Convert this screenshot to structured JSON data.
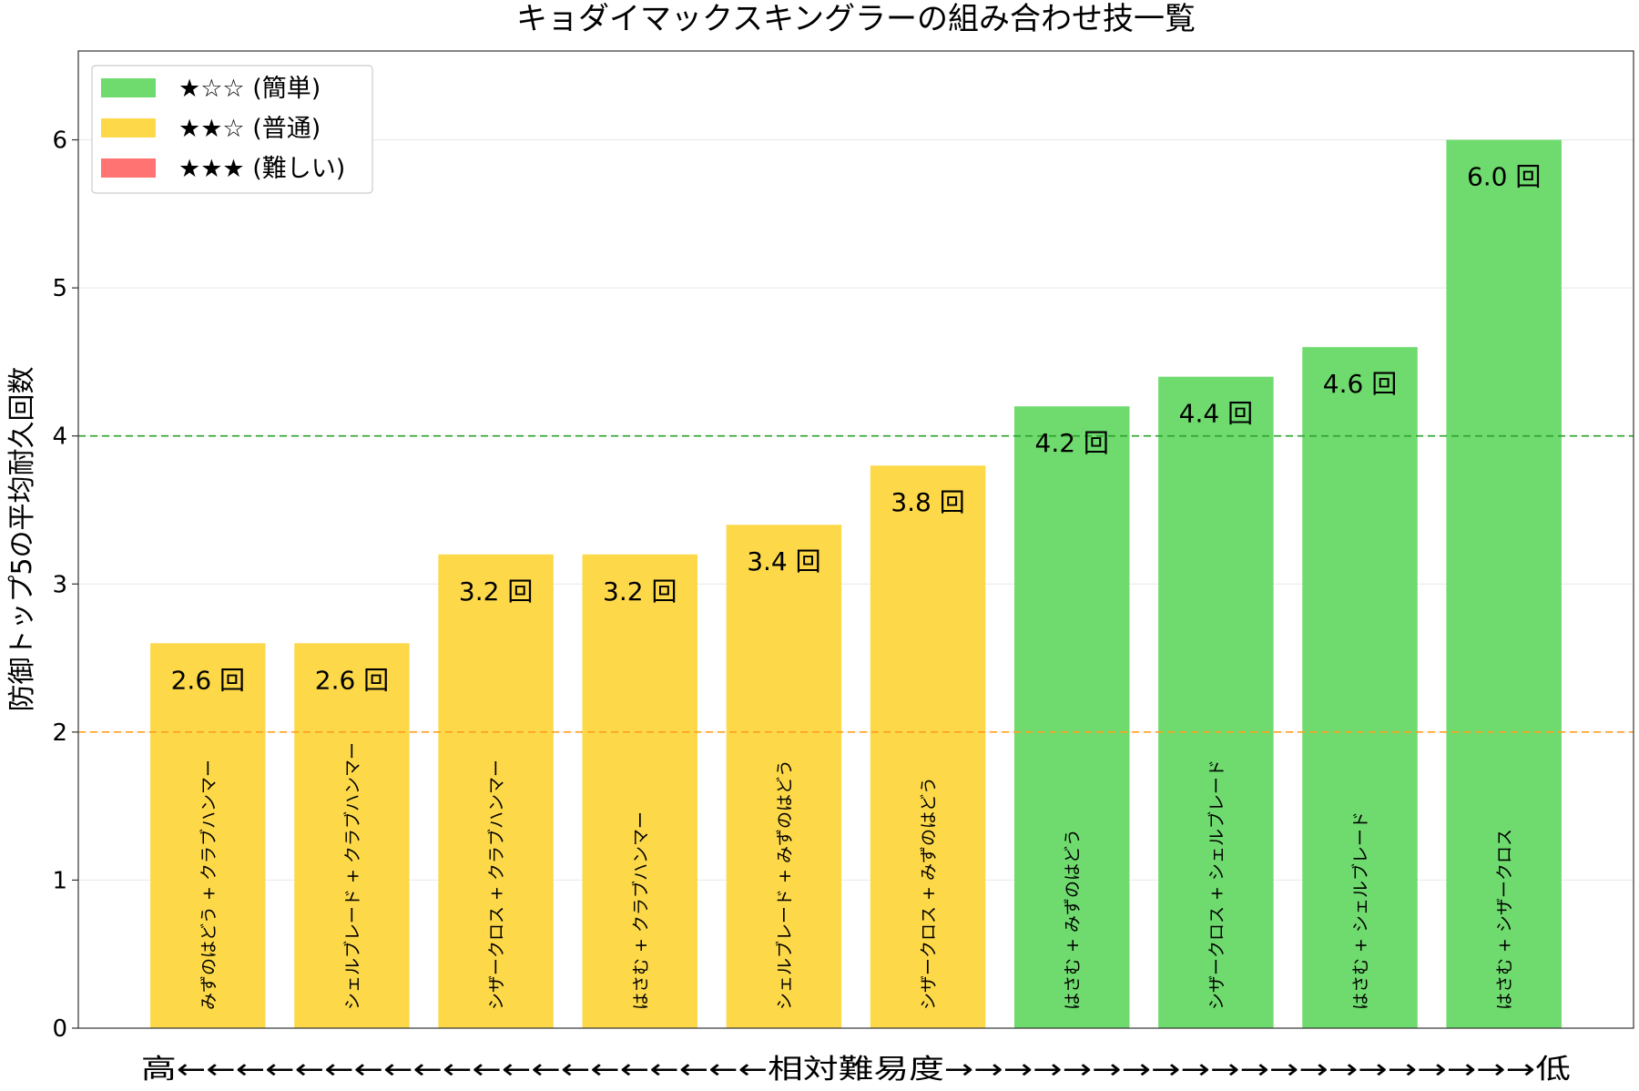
{
  "chart_data": {
    "type": "bar",
    "title": "キョダイマックスキングラーの組み合わせ技一覧",
    "ylabel": "防御トップ5の平均耐久回数",
    "xlabel": "高←←←←←←←←←←←←←←←←←←←←相対難易度→→→→→→→→→→→→→→→→→→→→低",
    "ylim": [
      0,
      6.6
    ],
    "yticks": [
      0,
      1,
      2,
      3,
      4,
      5,
      6
    ],
    "grid": true,
    "legend_position": "top-left",
    "value_suffix": " 回",
    "categories": [
      "みずのはどう + クラブハンマー",
      "シェルブレード + クラブハンマー",
      "シザークロス + クラブハンマー",
      "はさむ + クラブハンマー",
      "シェルブレード + みずのはどう",
      "シザークロス + みずのはどう",
      "はさむ + みずのはどう",
      "シザークロス + シェルブレード",
      "はさむ + シェルブレード",
      "はさむ + シザークロス"
    ],
    "values": [
      2.6,
      2.6,
      3.2,
      3.2,
      3.4,
      3.8,
      4.2,
      4.4,
      4.6,
      6.0
    ],
    "value_labels": [
      "2.6 回",
      "2.6 回",
      "3.2 回",
      "3.2 回",
      "3.4 回",
      "3.8 回",
      "4.2 回",
      "4.4 回",
      "4.6 回",
      "6.0 回"
    ],
    "difficulty": [
      "normal",
      "normal",
      "normal",
      "normal",
      "normal",
      "normal",
      "easy",
      "easy",
      "easy",
      "easy"
    ],
    "reference_lines": [
      {
        "y": 4,
        "color": "#2ca02c",
        "style": "dashed"
      },
      {
        "y": 2,
        "color": "#ff9f1c",
        "style": "dashed"
      }
    ],
    "legend": [
      {
        "key": "easy",
        "label": "★☆☆ (簡単)",
        "color": "#6fdb6f"
      },
      {
        "key": "normal",
        "label": "★★☆ (普通)",
        "color": "#fdd94a"
      },
      {
        "key": "hard",
        "label": "★★★ (難しい)",
        "color": "#ff7373"
      }
    ]
  }
}
